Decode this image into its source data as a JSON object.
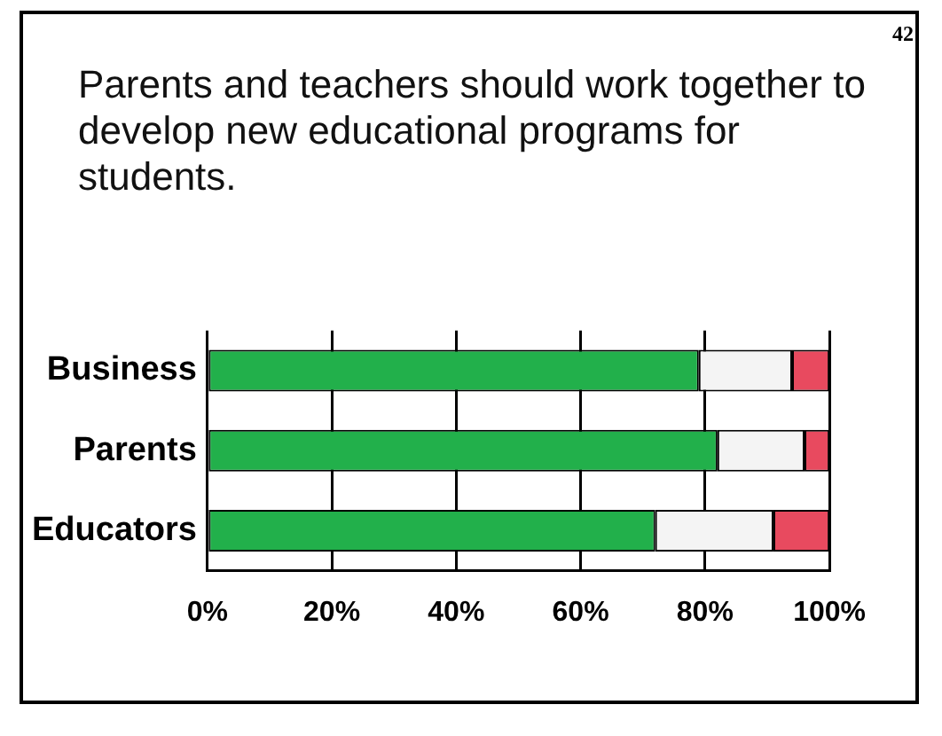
{
  "chart_data": {
    "type": "bar",
    "title": "Parents and teachers should work together to develop new educational programs for students.",
    "orientation": "horizontal",
    "stacked": true,
    "categories": [
      "Business",
      "Parents",
      "Educators"
    ],
    "series": [
      {
        "color": "#22b04b",
        "values": [
          79,
          82,
          72
        ]
      },
      {
        "color": "#f4f4f4",
        "values": [
          15,
          14,
          19
        ]
      },
      {
        "color": "#e84a5f",
        "values": [
          6,
          4,
          9
        ]
      }
    ],
    "xlim": [
      0,
      100
    ],
    "xticks": [
      {
        "value": 0,
        "label": "0%"
      },
      {
        "value": 20,
        "label": "20%"
      },
      {
        "value": 40,
        "label": "40%"
      },
      {
        "value": 60,
        "label": "60%"
      },
      {
        "value": 80,
        "label": "80%"
      },
      {
        "value": 100,
        "label": "100%"
      }
    ],
    "grid": "x",
    "legend": false,
    "annotations": [
      "42"
    ]
  }
}
